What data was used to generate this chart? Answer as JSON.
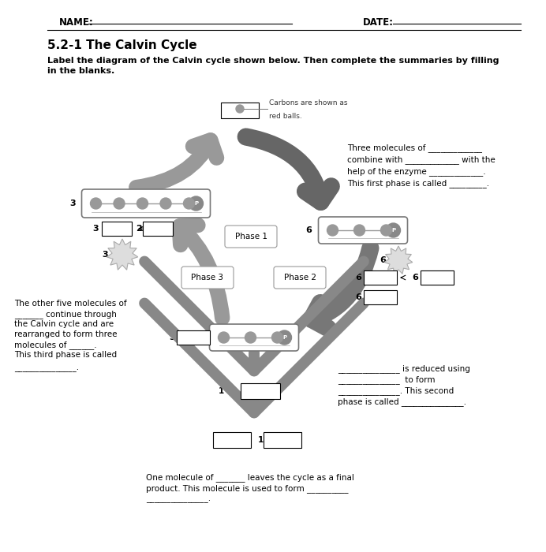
{
  "title": "5.2-1 The Calvin Cycle",
  "instruction": "Label the diagram of the Calvin cycle shown below. Then complete the summaries by filling\nin the blanks.",
  "name_label": "NAME:",
  "date_label": "DATE:",
  "bg_color": "#ffffff",
  "phase1_text": "Phase 1",
  "phase2_text": "Phase 2",
  "phase3_text": "Phase 3",
  "carbon_note": "Carbons are shown as\nred balls.",
  "right_text_1": "Three molecules of _____________",
  "right_text_2": "combine with _____________ with the",
  "right_text_3": "help of the enzyme _____________.",
  "right_text_4": "This first phase is called _________.",
  "left_text_1": "The other five molecules of",
  "left_text_2": "_______ continue through",
  "left_text_3": "the Calvin cycle and are",
  "left_text_4": "rearranged to form three",
  "left_text_5": "molecules of ______.",
  "left_text_6": "This third phase is called",
  "left_text_7": "_______________.",
  "bottom_right_1": "_______________ is reduced using",
  "bottom_right_2": "_______________  to form",
  "bottom_right_3": "_______________. This second",
  "bottom_right_4": "phase is called _______________.",
  "bottom_text_1": "One molecule of _______ leaves the cycle as a final",
  "bottom_text_2": "product. This molecule is used to form __________",
  "bottom_text_3": "_______________."
}
